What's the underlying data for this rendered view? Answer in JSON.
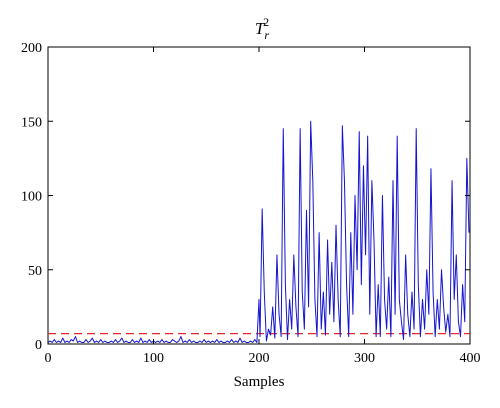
{
  "chart_data": {
    "type": "line",
    "title": {
      "base": "T",
      "sub": "r",
      "sup": "2"
    },
    "xlabel": "Samples",
    "ylabel": "",
    "xlim": [
      0,
      400
    ],
    "ylim": [
      0,
      200
    ],
    "xticks": [
      0,
      100,
      200,
      300,
      400
    ],
    "yticks": [
      0,
      50,
      100,
      150,
      200
    ],
    "xtick_labels": [
      "0",
      "100",
      "200",
      "300",
      "400"
    ],
    "ytick_labels": [
      "0",
      "50",
      "100",
      "150",
      "200"
    ],
    "grid": false,
    "legend": false,
    "threshold": {
      "value": 7,
      "style": "dashed",
      "color": "#e8282a"
    },
    "series": [
      {
        "color": "#1515d0",
        "points": [
          [
            0,
            1
          ],
          [
            2,
            2
          ],
          [
            4,
            1
          ],
          [
            6,
            3
          ],
          [
            8,
            1
          ],
          [
            10,
            2
          ],
          [
            12,
            1
          ],
          [
            14,
            4
          ],
          [
            16,
            1
          ],
          [
            18,
            2
          ],
          [
            20,
            1
          ],
          [
            22,
            3
          ],
          [
            24,
            2
          ],
          [
            26,
            5
          ],
          [
            28,
            1
          ],
          [
            30,
            2
          ],
          [
            32,
            1
          ],
          [
            34,
            1
          ],
          [
            36,
            3
          ],
          [
            38,
            1
          ],
          [
            40,
            2
          ],
          [
            42,
            4
          ],
          [
            44,
            1
          ],
          [
            46,
            2
          ],
          [
            48,
            1
          ],
          [
            50,
            3
          ],
          [
            52,
            1
          ],
          [
            54,
            2
          ],
          [
            56,
            1
          ],
          [
            58,
            1
          ],
          [
            60,
            2
          ],
          [
            62,
            1
          ],
          [
            64,
            3
          ],
          [
            66,
            1
          ],
          [
            68,
            2
          ],
          [
            70,
            4
          ],
          [
            72,
            1
          ],
          [
            74,
            2
          ],
          [
            76,
            1
          ],
          [
            78,
            1
          ],
          [
            80,
            3
          ],
          [
            82,
            1
          ],
          [
            84,
            2
          ],
          [
            86,
            1
          ],
          [
            88,
            4
          ],
          [
            90,
            1
          ],
          [
            92,
            2
          ],
          [
            94,
            1
          ],
          [
            96,
            3
          ],
          [
            98,
            1
          ],
          [
            100,
            2
          ],
          [
            102,
            1
          ],
          [
            104,
            2
          ],
          [
            106,
            1
          ],
          [
            108,
            3
          ],
          [
            110,
            1
          ],
          [
            112,
            2
          ],
          [
            114,
            1
          ],
          [
            116,
            1
          ],
          [
            118,
            3
          ],
          [
            120,
            2
          ],
          [
            122,
            1
          ],
          [
            124,
            2
          ],
          [
            126,
            5
          ],
          [
            128,
            1
          ],
          [
            130,
            2
          ],
          [
            132,
            1
          ],
          [
            134,
            3
          ],
          [
            136,
            1
          ],
          [
            138,
            2
          ],
          [
            140,
            1
          ],
          [
            142,
            1
          ],
          [
            144,
            2
          ],
          [
            146,
            1
          ],
          [
            148,
            3
          ],
          [
            150,
            1
          ],
          [
            152,
            2
          ],
          [
            154,
            1
          ],
          [
            156,
            2
          ],
          [
            158,
            1
          ],
          [
            160,
            3
          ],
          [
            162,
            1
          ],
          [
            164,
            2
          ],
          [
            166,
            1
          ],
          [
            168,
            1
          ],
          [
            170,
            2
          ],
          [
            172,
            1
          ],
          [
            174,
            3
          ],
          [
            176,
            1
          ],
          [
            178,
            2
          ],
          [
            180,
            1
          ],
          [
            182,
            4
          ],
          [
            184,
            1
          ],
          [
            186,
            2
          ],
          [
            188,
            1
          ],
          [
            190,
            1
          ],
          [
            192,
            2
          ],
          [
            194,
            1
          ],
          [
            196,
            3
          ],
          [
            198,
            1
          ],
          [
            200,
            30
          ],
          [
            201,
            5
          ],
          [
            203,
            91
          ],
          [
            205,
            35
          ],
          [
            207,
            2
          ],
          [
            209,
            10
          ],
          [
            211,
            6
          ],
          [
            213,
            25
          ],
          [
            215,
            4
          ],
          [
            217,
            60
          ],
          [
            219,
            20
          ],
          [
            221,
            5
          ],
          [
            223,
            145
          ],
          [
            225,
            40
          ],
          [
            227,
            3
          ],
          [
            229,
            30
          ],
          [
            231,
            10
          ],
          [
            233,
            60
          ],
          [
            235,
            25
          ],
          [
            237,
            5
          ],
          [
            239,
            145
          ],
          [
            241,
            35
          ],
          [
            243,
            10
          ],
          [
            245,
            90
          ],
          [
            247,
            25
          ],
          [
            249,
            150
          ],
          [
            251,
            110
          ],
          [
            253,
            30
          ],
          [
            255,
            5
          ],
          [
            257,
            75
          ],
          [
            259,
            10
          ],
          [
            261,
            35
          ],
          [
            263,
            6
          ],
          [
            265,
            70
          ],
          [
            267,
            20
          ],
          [
            269,
            55
          ],
          [
            271,
            15
          ],
          [
            273,
            80
          ],
          [
            275,
            30
          ],
          [
            277,
            5
          ],
          [
            279,
            147
          ],
          [
            281,
            110
          ],
          [
            283,
            40
          ],
          [
            285,
            5
          ],
          [
            287,
            75
          ],
          [
            289,
            20
          ],
          [
            291,
            100
          ],
          [
            293,
            50
          ],
          [
            295,
            143
          ],
          [
            297,
            40
          ],
          [
            299,
            120
          ],
          [
            301,
            60
          ],
          [
            303,
            140
          ],
          [
            305,
            20
          ],
          [
            307,
            110
          ],
          [
            309,
            70
          ],
          [
            311,
            5
          ],
          [
            313,
            40
          ],
          [
            315,
            5
          ],
          [
            317,
            100
          ],
          [
            319,
            30
          ],
          [
            321,
            10
          ],
          [
            323,
            45
          ],
          [
            325,
            5
          ],
          [
            327,
            110
          ],
          [
            329,
            20
          ],
          [
            331,
            140
          ],
          [
            333,
            30
          ],
          [
            335,
            15
          ],
          [
            337,
            3
          ],
          [
            339,
            60
          ],
          [
            341,
            20
          ],
          [
            343,
            5
          ],
          [
            345,
            35
          ],
          [
            347,
            10
          ],
          [
            349,
            145
          ],
          [
            351,
            40
          ],
          [
            353,
            5
          ],
          [
            355,
            30
          ],
          [
            357,
            10
          ],
          [
            359,
            50
          ],
          [
            361,
            20
          ],
          [
            363,
            118
          ],
          [
            365,
            35
          ],
          [
            367,
            5
          ],
          [
            369,
            30
          ],
          [
            371,
            10
          ],
          [
            373,
            50
          ],
          [
            375,
            25
          ],
          [
            377,
            8
          ],
          [
            379,
            20
          ],
          [
            381,
            5
          ],
          [
            383,
            110
          ],
          [
            385,
            30
          ],
          [
            387,
            60
          ],
          [
            389,
            15
          ],
          [
            391,
            5
          ],
          [
            393,
            40
          ],
          [
            395,
            15
          ],
          [
            397,
            125
          ],
          [
            399,
            75
          ]
        ]
      }
    ]
  }
}
